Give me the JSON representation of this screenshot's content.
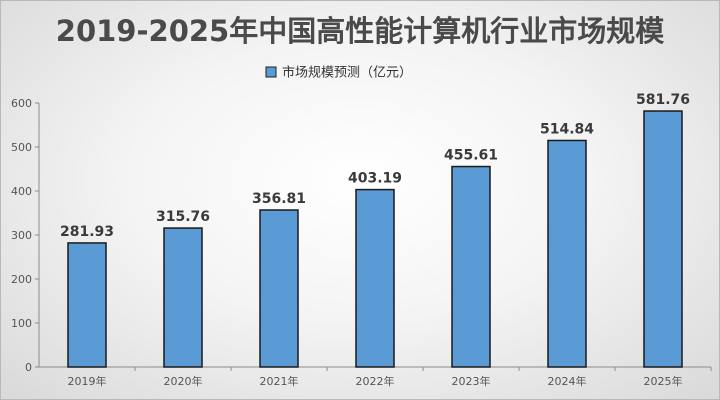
{
  "chart_data": {
    "type": "bar",
    "title": "2019-2025年中国高性能计算机行业市场规模",
    "categories": [
      "2019年",
      "2020年",
      "2021年",
      "2022年",
      "2023年",
      "2024年",
      "2025年"
    ],
    "series": [
      {
        "name": "市场规模预测（亿元）",
        "values": [
          281.93,
          315.76,
          356.81,
          403.19,
          455.61,
          514.84,
          581.76
        ],
        "labels": [
          "281.93",
          "315.76",
          "356.81",
          "403.19",
          "455.61",
          "514.84",
          "581.76"
        ],
        "color": "#5b9bd5"
      }
    ],
    "xlabel": "",
    "ylabel": "",
    "ylim": [
      0,
      600
    ],
    "yticks": [
      "0",
      "100",
      "200",
      "300",
      "400",
      "500",
      "600"
    ],
    "grid": false,
    "legend": "top-center"
  }
}
